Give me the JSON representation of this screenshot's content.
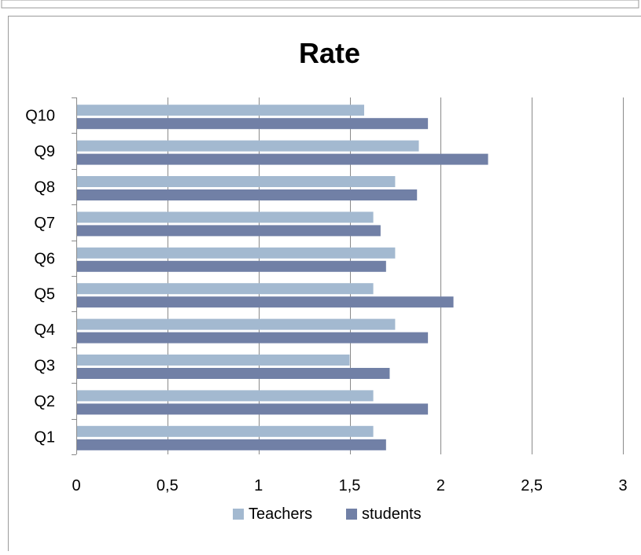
{
  "chart_data": {
    "type": "bar",
    "orientation": "horizontal",
    "title": "Rate",
    "categories": [
      "Q1",
      "Q2",
      "Q3",
      "Q4",
      "Q5",
      "Q6",
      "Q7",
      "Q8",
      "Q9",
      "Q10"
    ],
    "series": [
      {
        "name": "Teachers",
        "color": "#a3b9d0",
        "values": [
          1.63,
          1.63,
          1.5,
          1.75,
          1.63,
          1.75,
          1.63,
          1.75,
          1.88,
          1.58
        ]
      },
      {
        "name": "students",
        "color": "#7180a6",
        "values": [
          1.7,
          1.93,
          1.72,
          1.93,
          2.07,
          1.7,
          1.67,
          1.87,
          2.26,
          1.93
        ]
      }
    ],
    "xlim": [
      0,
      3
    ],
    "x_ticks": [
      "0",
      "0,5",
      "1",
      "1,5",
      "2",
      "2,5",
      "3"
    ],
    "x_tick_values": [
      0,
      0.5,
      1,
      1.5,
      2,
      2.5,
      3
    ],
    "grid": "vertical",
    "legend_position": "bottom",
    "xlabel": "",
    "ylabel": ""
  }
}
